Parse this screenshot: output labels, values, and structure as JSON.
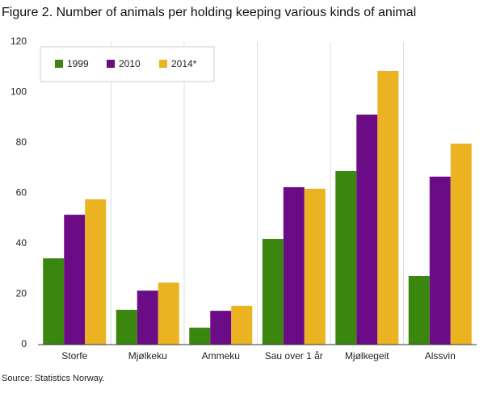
{
  "chart_data": {
    "type": "bar",
    "title": "Figure 2. Number of animals per holding keeping various kinds of animal",
    "source": "Source: Statistics Norway.",
    "categories": [
      "Storfe",
      "Mjølkeku",
      "Ammeku",
      "Sau over 1 år",
      "Mjølkegeit",
      "Alssvin"
    ],
    "series": [
      {
        "name": "1999",
        "color": "#3a860e",
        "values": [
          34.2,
          13.8,
          6.7,
          41.9,
          68.8,
          27.2
        ]
      },
      {
        "name": "2010",
        "color": "#6b0b86",
        "values": [
          51.5,
          21.4,
          13.4,
          62.4,
          91.2,
          66.6
        ]
      },
      {
        "name": "2014*",
        "color": "#ebb321",
        "values": [
          57.6,
          24.6,
          15.4,
          61.8,
          108.5,
          79.7
        ]
      }
    ],
    "ylim": [
      0,
      120
    ],
    "yticks": [
      0,
      20,
      40,
      60,
      80,
      100,
      120
    ],
    "legend": "upper left"
  }
}
